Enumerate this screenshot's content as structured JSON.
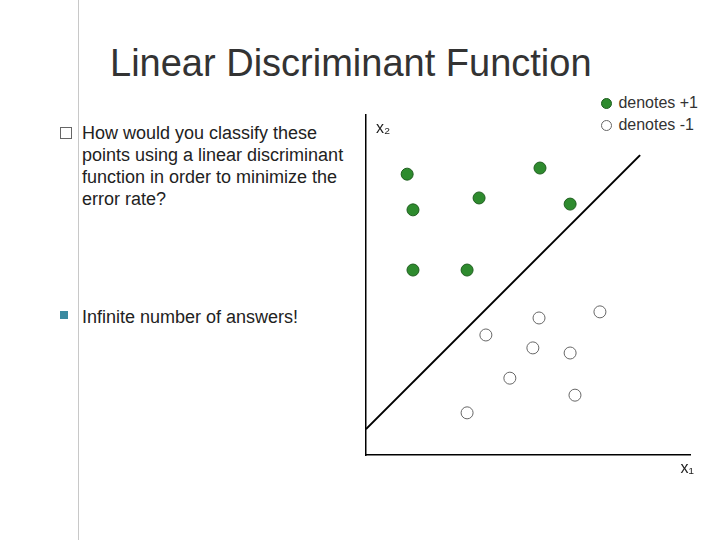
{
  "slide": {
    "title": "Linear Discriminant Function",
    "bullets": [
      "How would you classify these points using a linear discriminant function in order to minimize the error rate?",
      "Infinite number of answers!"
    ]
  },
  "chart_data": {
    "type": "scatter",
    "x_label": "x₁",
    "y_label": "x₂",
    "xlim": [
      0,
      10
    ],
    "ylim": [
      0,
      10
    ],
    "tick_labels": false,
    "grid": false,
    "legend": "top-right",
    "series": [
      {
        "name": "denotes +1",
        "color": "#2e8b2e",
        "marker": "circle",
        "x": [
          1.27,
          1.45,
          1.45,
          3.12,
          3.49,
          5.37,
          6.3
        ],
        "values": [
          8.26,
          7.21,
          5.44,
          5.44,
          7.56,
          8.44,
          7.38
        ]
      },
      {
        "name": "denotes -1",
        "color": "#666666",
        "marker": "open circle",
        "x": [
          3.7,
          5.34,
          7.22,
          5.15,
          6.3,
          4.44,
          6.45,
          3.12
        ],
        "values": [
          3.53,
          4.03,
          4.21,
          3.15,
          3.0,
          2.26,
          1.76,
          1.24
        ]
      },
      {
        "type": "line",
        "color": "#000000",
        "line_style": "solid",
        "x": [
          0,
          8.46
        ],
        "values": [
          0.76,
          8.82
        ]
      }
    ]
  }
}
